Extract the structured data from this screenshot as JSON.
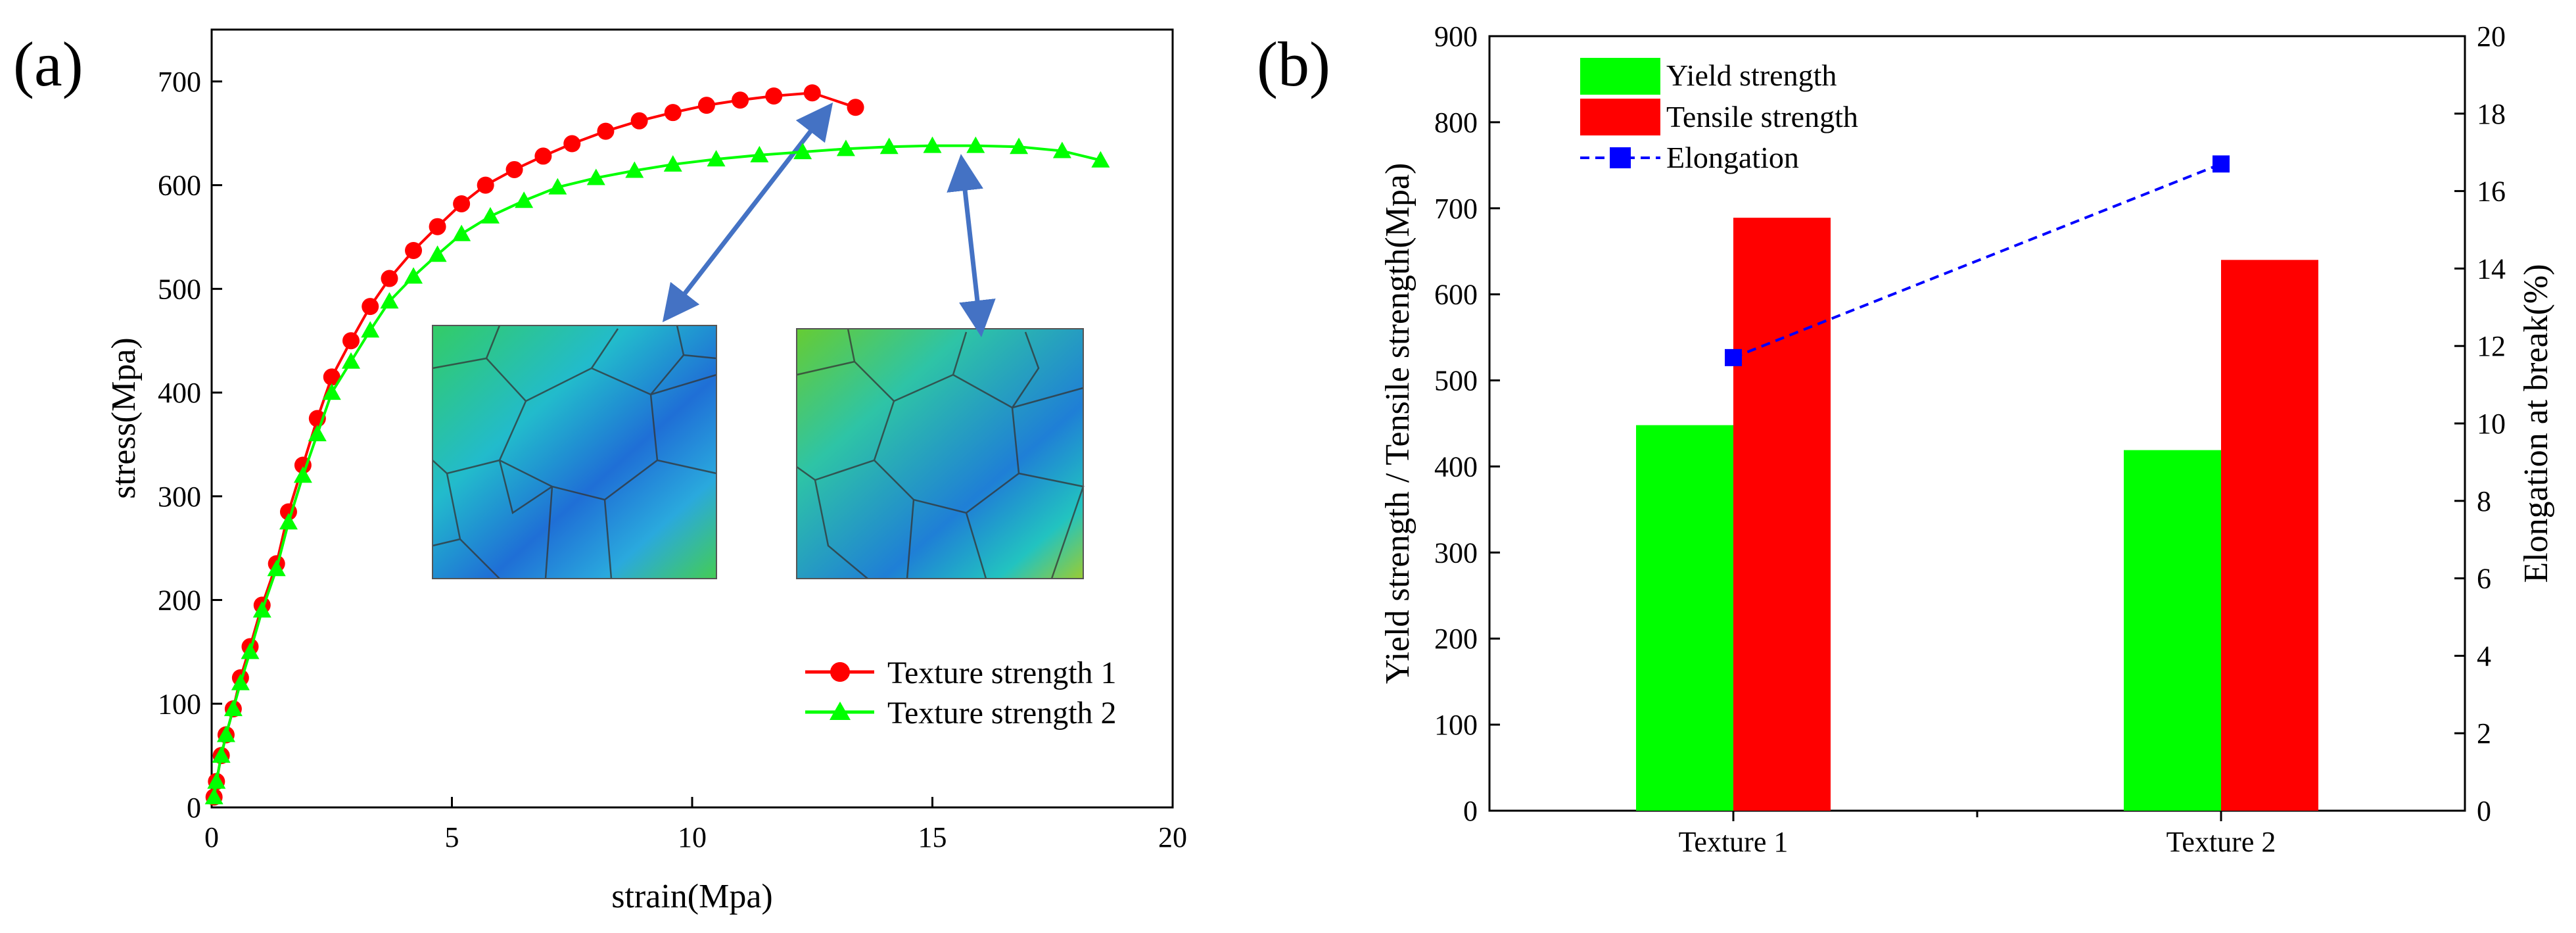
{
  "chart_data": [
    {
      "panel_label": "(a)",
      "type": "line",
      "xlabel": "strain(Mpa)",
      "ylabel": "stress(Mpa)",
      "xlim": [
        0,
        20
      ],
      "ylim": [
        0,
        750
      ],
      "x_ticks": [
        0,
        5,
        10,
        15,
        20
      ],
      "y_ticks": [
        0,
        100,
        200,
        300,
        400,
        500,
        600,
        700
      ],
      "legend_position": "bottom-right",
      "series": [
        {
          "name": "Texture strength 1",
          "color": "#ff0000",
          "marker": "circle",
          "x": [
            0.05,
            0.1,
            0.2,
            0.3,
            0.45,
            0.6,
            0.8,
            1.05,
            1.35,
            1.6,
            1.9,
            2.2,
            2.5,
            2.9,
            3.3,
            3.7,
            4.2,
            4.7,
            5.2,
            5.7,
            6.3,
            6.9,
            7.5,
            8.2,
            8.9,
            9.6,
            10.3,
            11.0,
            11.7,
            12.5,
            13.4
          ],
          "y": [
            10,
            25,
            50,
            70,
            95,
            125,
            155,
            195,
            235,
            285,
            330,
            375,
            415,
            450,
            483,
            510,
            537,
            560,
            582,
            600,
            615,
            628,
            640,
            652,
            662,
            670,
            677,
            682,
            686,
            689,
            675
          ]
        },
        {
          "name": "Texture strength 2",
          "color": "#00ff00",
          "marker": "triangle",
          "x": [
            0.05,
            0.1,
            0.2,
            0.3,
            0.45,
            0.6,
            0.8,
            1.05,
            1.35,
            1.6,
            1.9,
            2.2,
            2.5,
            2.9,
            3.3,
            3.7,
            4.2,
            4.7,
            5.2,
            5.8,
            6.5,
            7.2,
            8.0,
            8.8,
            9.6,
            10.5,
            11.4,
            12.3,
            13.2,
            14.1,
            15.0,
            15.9,
            16.8,
            17.7,
            18.5
          ],
          "y": [
            10,
            25,
            50,
            70,
            95,
            120,
            150,
            190,
            230,
            275,
            320,
            360,
            400,
            430,
            460,
            488,
            512,
            533,
            553,
            570,
            585,
            598,
            607,
            614,
            620,
            625,
            629,
            632,
            635,
            637,
            638,
            638,
            637,
            633,
            624
          ]
        }
      ]
    },
    {
      "panel_label": "(b)",
      "type": "bar",
      "categories": [
        "Texture 1",
        "Texture 2"
      ],
      "ylabel": "Yield strength / Tensile strength(Mpa)",
      "y2label": "Elongation at break(%)",
      "ylim": [
        0,
        900
      ],
      "y2lim": [
        0,
        20
      ],
      "y_ticks": [
        0,
        100,
        200,
        300,
        400,
        500,
        600,
        700,
        800,
        900
      ],
      "y2_ticks": [
        0,
        2,
        4,
        6,
        8,
        10,
        12,
        14,
        16,
        18,
        20
      ],
      "legend_position": "top-left",
      "series": [
        {
          "name": "Yield strength",
          "color": "#00ff00",
          "axis": "left",
          "values": [
            448,
            419
          ]
        },
        {
          "name": "Tensile strength",
          "color": "#ff0000",
          "axis": "left",
          "values": [
            689,
            640
          ]
        },
        {
          "name": "Elongation",
          "color": "#0000ff",
          "axis": "right",
          "type": "line",
          "marker": "square",
          "values": [
            11.7,
            16.7
          ]
        }
      ]
    }
  ]
}
